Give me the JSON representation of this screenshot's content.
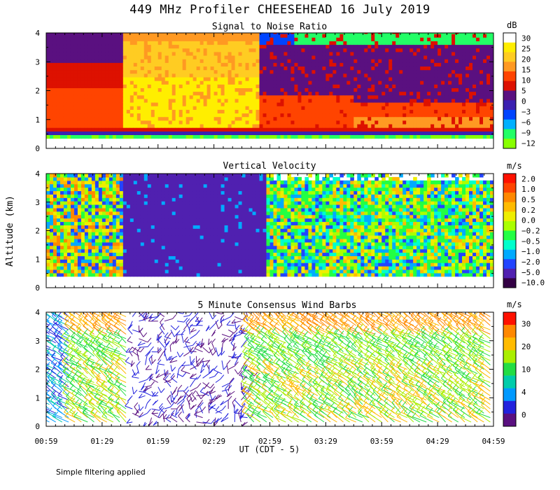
{
  "title": "449 MHz Profiler CHEESEHEAD 16 July 2019",
  "footer_note": "Simple filtering applied",
  "chart_data": [
    {
      "type": "heatmap",
      "title": "Signal to Noise Ratio",
      "ylabel": "Altitude (km)",
      "xlabel": "UT  (CDT - 5)",
      "ylim": [
        0,
        4
      ],
      "y_ticks": [
        "0",
        "1",
        "2",
        "3",
        "4"
      ],
      "colorbar": {
        "unit": "dB",
        "labels": [
          "30",
          "25",
          "20",
          "15",
          "10",
          "5",
          "0",
          "−3",
          "−6",
          "−9",
          "−12"
        ],
        "colors": [
          "#ffffff",
          "#ffee00",
          "#ffcc22",
          "#ff9922",
          "#ff4400",
          "#dd1100",
          "#5a1080",
          "#3a20b0",
          "#0044ff",
          "#00b0ff",
          "#22ff66",
          "#88ff00"
        ]
      }
    },
    {
      "type": "heatmap",
      "title": "Vertical Velocity",
      "ylim": [
        0,
        4
      ],
      "y_ticks": [
        "0",
        "1",
        "2",
        "3",
        "4"
      ],
      "colorbar": {
        "unit": "m/s",
        "labels": [
          "2.0",
          "1.0",
          "0.5",
          "0.2",
          "0.0",
          "−0.2",
          "−0.5",
          "−1.0",
          "−2.0",
          "−5.0",
          "−10.0"
        ],
        "colors": [
          "#ff1100",
          "#ff4400",
          "#ff8800",
          "#ffbb00",
          "#eeee00",
          "#aaff00",
          "#22ff44",
          "#00ffcc",
          "#00aaff",
          "#2244ff",
          "#5020b0",
          "#330044"
        ]
      }
    },
    {
      "type": "wind_barbs",
      "title": "5 Minute Consensus Wind Barbs",
      "ylim": [
        0,
        4
      ],
      "y_ticks": [
        "0",
        "1",
        "2",
        "3",
        "4"
      ],
      "x_ticks": [
        "00:59",
        "01:29",
        "01:59",
        "02:29",
        "02:59",
        "03:29",
        "03:59",
        "04:29",
        "04:59"
      ],
      "colorbar": {
        "unit": "m/s",
        "labels": [
          "30",
          "20",
          "10",
          "4",
          "0"
        ],
        "colors": [
          "#ff1100",
          "#ff8800",
          "#ffbb00",
          "#aaee00",
          "#22dd44",
          "#00ccaa",
          "#0099ff",
          "#2222dd",
          "#5a1080"
        ]
      }
    }
  ]
}
